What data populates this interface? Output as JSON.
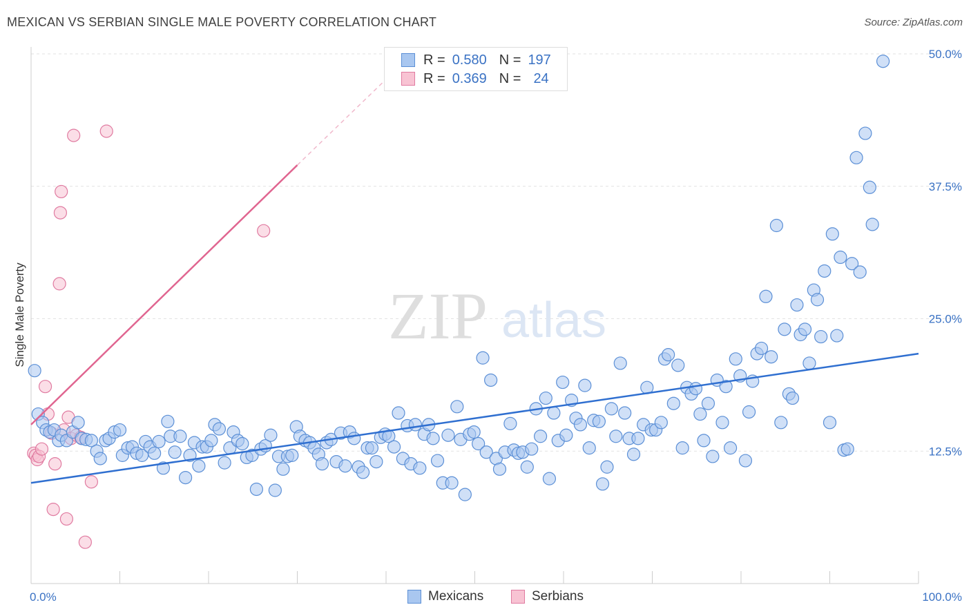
{
  "title": "MEXICAN VS SERBIAN SINGLE MALE POVERTY CORRELATION CHART",
  "source": "Source: ZipAtlas.com",
  "watermark": {
    "zip": "ZIP",
    "atlas": "atlas"
  },
  "legend": {
    "rows": [
      {
        "r_label": "R =",
        "r_value": "0.580",
        "n_label": "N =",
        "n_value": "197",
        "color": "#a9c7f0",
        "border": "#5b8fd6"
      },
      {
        "r_label": "R =",
        "r_value": "0.369",
        "n_label": "N =",
        "n_value": "24",
        "color": "#f8c3d3",
        "border": "#e07aa0"
      }
    ]
  },
  "bottom_legend": [
    {
      "label": "Mexicans",
      "color": "#a9c7f0",
      "border": "#5b8fd6"
    },
    {
      "label": "Serbians",
      "color": "#f8c3d3",
      "border": "#e07aa0"
    }
  ],
  "chart_data": {
    "type": "scatter",
    "title": "MEXICAN VS SERBIAN SINGLE MALE POVERTY CORRELATION CHART",
    "xlabel": "",
    "ylabel": "Single Male Poverty",
    "xlim": [
      0,
      100
    ],
    "ylim": [
      0,
      50
    ],
    "x_tick_labels": [
      "0.0%",
      "100.0%"
    ],
    "y_tick_labels": [
      "12.5%",
      "25.0%",
      "37.5%",
      "50.0%"
    ],
    "y_tick_values": [
      12.5,
      25.0,
      37.5,
      50.0
    ],
    "grid": true,
    "series": [
      {
        "name": "Mexicans",
        "color": "#5b8fd6",
        "fill": "#a9c7f0",
        "trend": {
          "x": [
            0,
            100
          ],
          "y": [
            9.5,
            21.7
          ]
        },
        "points": [
          [
            0.4,
            20.1
          ],
          [
            0.8,
            16.0
          ],
          [
            1.3,
            15.2
          ],
          [
            1.7,
            14.5
          ],
          [
            2.1,
            14.3
          ],
          [
            2.6,
            14.5
          ],
          [
            3.1,
            13.5
          ],
          [
            3.4,
            14.0
          ],
          [
            4.0,
            13.5
          ],
          [
            4.7,
            14.3
          ],
          [
            5.3,
            15.2
          ],
          [
            5.7,
            13.7
          ],
          [
            6.2,
            13.6
          ],
          [
            6.8,
            13.5
          ],
          [
            7.4,
            12.5
          ],
          [
            7.8,
            11.8
          ],
          [
            8.4,
            13.5
          ],
          [
            8.8,
            13.7
          ],
          [
            9.4,
            14.3
          ],
          [
            10.0,
            14.5
          ],
          [
            10.3,
            12.1
          ],
          [
            10.9,
            12.8
          ],
          [
            11.4,
            12.9
          ],
          [
            11.9,
            12.3
          ],
          [
            12.5,
            12.1
          ],
          [
            12.9,
            13.4
          ],
          [
            13.4,
            12.9
          ],
          [
            13.9,
            12.3
          ],
          [
            14.4,
            13.4
          ],
          [
            14.9,
            10.9
          ],
          [
            15.4,
            15.3
          ],
          [
            15.7,
            13.9
          ],
          [
            16.2,
            12.4
          ],
          [
            16.8,
            13.9
          ],
          [
            17.4,
            10.0
          ],
          [
            17.9,
            12.1
          ],
          [
            18.4,
            13.3
          ],
          [
            18.9,
            11.1
          ],
          [
            19.3,
            12.9
          ],
          [
            19.8,
            12.9
          ],
          [
            20.3,
            13.5
          ],
          [
            20.7,
            15.0
          ],
          [
            21.2,
            14.6
          ],
          [
            21.8,
            11.4
          ],
          [
            22.4,
            12.8
          ],
          [
            22.8,
            14.3
          ],
          [
            23.3,
            13.5
          ],
          [
            23.8,
            13.2
          ],
          [
            24.3,
            11.9
          ],
          [
            24.9,
            12.1
          ],
          [
            25.4,
            8.9
          ],
          [
            25.9,
            12.7
          ],
          [
            26.4,
            13.0
          ],
          [
            27.0,
            14.0
          ],
          [
            27.5,
            8.8
          ],
          [
            27.9,
            12.0
          ],
          [
            28.4,
            10.8
          ],
          [
            28.9,
            12.0
          ],
          [
            29.4,
            12.1
          ],
          [
            29.9,
            14.8
          ],
          [
            30.3,
            13.9
          ],
          [
            30.9,
            13.5
          ],
          [
            31.4,
            13.3
          ],
          [
            31.9,
            12.8
          ],
          [
            32.4,
            12.2
          ],
          [
            32.8,
            11.3
          ],
          [
            33.3,
            13.3
          ],
          [
            33.8,
            13.6
          ],
          [
            34.4,
            11.5
          ],
          [
            34.9,
            14.2
          ],
          [
            35.4,
            11.1
          ],
          [
            35.9,
            14.3
          ],
          [
            36.4,
            13.7
          ],
          [
            36.9,
            11.0
          ],
          [
            37.4,
            10.5
          ],
          [
            37.9,
            12.8
          ],
          [
            38.4,
            12.8
          ],
          [
            38.9,
            11.5
          ],
          [
            39.4,
            13.8
          ],
          [
            39.9,
            14.1
          ],
          [
            40.3,
            13.9
          ],
          [
            40.9,
            12.9
          ],
          [
            41.4,
            16.1
          ],
          [
            41.9,
            11.8
          ],
          [
            42.4,
            14.9
          ],
          [
            42.8,
            11.3
          ],
          [
            43.3,
            15.0
          ],
          [
            43.8,
            10.9
          ],
          [
            44.3,
            14.1
          ],
          [
            44.8,
            15.0
          ],
          [
            45.3,
            13.7
          ],
          [
            45.8,
            11.6
          ],
          [
            46.4,
            9.5
          ],
          [
            47.0,
            14.0
          ],
          [
            47.4,
            9.5
          ],
          [
            48.0,
            16.7
          ],
          [
            48.4,
            13.6
          ],
          [
            48.9,
            8.4
          ],
          [
            49.4,
            14.1
          ],
          [
            49.9,
            14.3
          ],
          [
            50.4,
            13.2
          ],
          [
            50.9,
            21.3
          ],
          [
            51.3,
            12.4
          ],
          [
            51.8,
            19.2
          ],
          [
            52.4,
            11.8
          ],
          [
            52.8,
            10.8
          ],
          [
            53.4,
            12.4
          ],
          [
            54.0,
            15.1
          ],
          [
            54.4,
            12.6
          ],
          [
            54.9,
            12.3
          ],
          [
            55.4,
            12.4
          ],
          [
            55.9,
            11.0
          ],
          [
            56.4,
            12.7
          ],
          [
            56.9,
            16.5
          ],
          [
            57.4,
            13.9
          ],
          [
            58.0,
            17.5
          ],
          [
            58.4,
            9.9
          ],
          [
            58.9,
            16.1
          ],
          [
            59.4,
            13.5
          ],
          [
            59.9,
            19.0
          ],
          [
            60.3,
            14.0
          ],
          [
            60.9,
            17.3
          ],
          [
            61.4,
            15.6
          ],
          [
            61.9,
            15.0
          ],
          [
            62.4,
            18.7
          ],
          [
            62.9,
            12.8
          ],
          [
            63.4,
            15.4
          ],
          [
            64.0,
            15.3
          ],
          [
            64.4,
            9.4
          ],
          [
            64.9,
            11.0
          ],
          [
            65.4,
            16.5
          ],
          [
            65.9,
            13.9
          ],
          [
            66.4,
            20.8
          ],
          [
            66.9,
            16.1
          ],
          [
            67.4,
            13.7
          ],
          [
            67.9,
            12.2
          ],
          [
            68.4,
            13.7
          ],
          [
            69.0,
            15.0
          ],
          [
            69.4,
            18.5
          ],
          [
            69.9,
            14.5
          ],
          [
            70.4,
            14.5
          ],
          [
            71.0,
            15.2
          ],
          [
            71.4,
            21.2
          ],
          [
            71.8,
            21.6
          ],
          [
            72.4,
            17.0
          ],
          [
            72.9,
            20.6
          ],
          [
            73.4,
            12.8
          ],
          [
            73.9,
            18.5
          ],
          [
            74.4,
            17.9
          ],
          [
            74.9,
            18.4
          ],
          [
            75.4,
            16.0
          ],
          [
            75.8,
            13.5
          ],
          [
            76.3,
            17.0
          ],
          [
            76.8,
            12.0
          ],
          [
            77.3,
            19.2
          ],
          [
            77.9,
            15.2
          ],
          [
            78.3,
            18.6
          ],
          [
            78.8,
            12.8
          ],
          [
            79.4,
            21.2
          ],
          [
            79.9,
            19.6
          ],
          [
            80.5,
            11.6
          ],
          [
            80.9,
            16.2
          ],
          [
            81.3,
            19.1
          ],
          [
            81.8,
            21.7
          ],
          [
            82.3,
            22.2
          ],
          [
            82.8,
            27.1
          ],
          [
            83.4,
            21.4
          ],
          [
            84.0,
            33.8
          ],
          [
            84.5,
            15.2
          ],
          [
            84.9,
            24.0
          ],
          [
            85.4,
            17.9
          ],
          [
            85.8,
            17.5
          ],
          [
            86.3,
            26.3
          ],
          [
            86.7,
            23.5
          ],
          [
            87.2,
            24.0
          ],
          [
            87.7,
            20.8
          ],
          [
            88.2,
            27.7
          ],
          [
            88.6,
            26.8
          ],
          [
            89.0,
            23.3
          ],
          [
            89.4,
            29.5
          ],
          [
            90.0,
            15.2
          ],
          [
            90.3,
            33.0
          ],
          [
            90.8,
            23.4
          ],
          [
            91.2,
            30.8
          ],
          [
            91.6,
            12.6
          ],
          [
            92.0,
            12.7
          ],
          [
            92.5,
            30.2
          ],
          [
            93.0,
            40.2
          ],
          [
            93.4,
            29.4
          ],
          [
            94.0,
            42.5
          ],
          [
            94.5,
            37.4
          ],
          [
            94.8,
            33.9
          ],
          [
            96.0,
            49.3
          ]
        ]
      },
      {
        "name": "Serbians",
        "color": "#e07aa0",
        "fill": "#f8c3d3",
        "trend": {
          "x": [
            0,
            30
          ],
          "y": [
            15.0,
            39.5
          ]
        },
        "trend_dashed": {
          "x": [
            30,
            40
          ],
          "y": [
            39.5,
            47.6
          ]
        },
        "points": [
          [
            0.3,
            12.3
          ],
          [
            0.5,
            12.1
          ],
          [
            0.7,
            11.7
          ],
          [
            0.9,
            12.0
          ],
          [
            1.2,
            12.7
          ],
          [
            1.6,
            18.6
          ],
          [
            1.9,
            16.0
          ],
          [
            2.3,
            14.2
          ],
          [
            2.5,
            7.0
          ],
          [
            2.7,
            11.3
          ],
          [
            3.2,
            28.3
          ],
          [
            3.3,
            35.0
          ],
          [
            3.4,
            37.0
          ],
          [
            3.7,
            14.5
          ],
          [
            4.0,
            6.1
          ],
          [
            4.2,
            15.7
          ],
          [
            4.5,
            13.7
          ],
          [
            4.8,
            42.3
          ],
          [
            5.1,
            14.0
          ],
          [
            5.6,
            13.8
          ],
          [
            6.1,
            3.9
          ],
          [
            6.8,
            9.6
          ],
          [
            8.5,
            42.7
          ],
          [
            26.2,
            33.3
          ]
        ]
      }
    ]
  }
}
